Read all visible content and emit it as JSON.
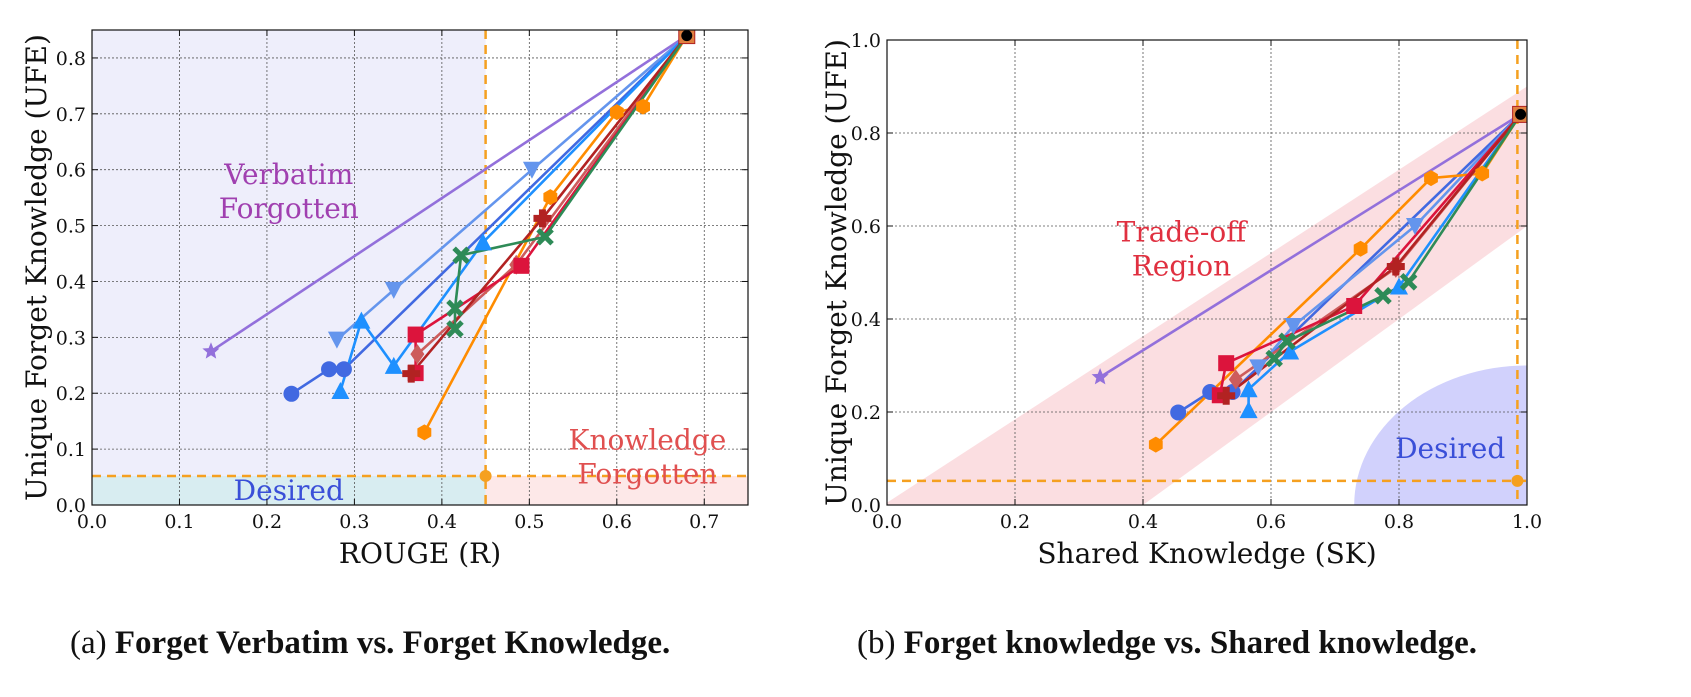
{
  "charts": [
    {
      "id": "a",
      "caption_prefix": "(a)",
      "caption_bold": "Forget Verbatim vs. Forget Knowledge.",
      "xlabel": "ROUGE (R)",
      "ylabel": "Unique Forget Knowledge (UFE)",
      "xlim": [
        0,
        0.75
      ],
      "ylim": [
        0,
        0.85
      ],
      "xticks": [
        "0.0",
        "0.1",
        "0.2",
        "0.3",
        "0.4",
        "0.5",
        "0.6",
        "0.7"
      ],
      "yticks": [
        "0.0",
        "0.1",
        "0.2",
        "0.3",
        "0.4",
        "0.5",
        "0.6",
        "0.7",
        "0.8"
      ],
      "annotations": [
        {
          "lines": [
            "Verbatim",
            "Forgotten"
          ],
          "x": 0.225,
          "y": 0.56,
          "color": "#a040b0"
        },
        {
          "lines": [
            "Knowledge",
            "Forgotten"
          ],
          "x": 0.635,
          "y": 0.085,
          "color": "#e05050"
        },
        {
          "lines": [
            "Desired"
          ],
          "x": 0.225,
          "y": 0.025,
          "color": "#3a4fd8"
        }
      ]
    },
    {
      "id": "b",
      "caption_prefix": "(b)",
      "caption_bold": "Forget knowledge vs. Shared knowledge.",
      "xlabel": "Shared Knowledge (SK)",
      "ylabel": "Unique Forget Knowledge (UFE)",
      "xlim": [
        0,
        1.0
      ],
      "ylim": [
        0,
        1.0
      ],
      "xticks": [
        "0.0",
        "0.2",
        "0.4",
        "0.6",
        "0.8",
        "1.0"
      ],
      "yticks": [
        "0.0",
        "0.2",
        "0.4",
        "0.6",
        "0.8",
        "1.0"
      ],
      "annotations": [
        {
          "lines": [
            "Trade-off",
            "Region"
          ],
          "x": 0.46,
          "y": 0.55,
          "color": "#e03040"
        },
        {
          "lines": [
            "Desired"
          ],
          "x": 0.88,
          "y": 0.12,
          "color": "#3a4fd8"
        }
      ]
    }
  ],
  "chart_data": [
    {
      "type": "line",
      "title": "",
      "xlabel": "ROUGE (R)",
      "ylabel": "Unique Forget Knowledge (UFE)",
      "xlim": [
        0,
        0.75
      ],
      "ylim": [
        0,
        0.85
      ],
      "grid": true,
      "thresholds": {
        "x": 0.45,
        "y": 0.052
      },
      "origin_point": [
        0.68,
        0.84
      ],
      "series": [
        {
          "color": "#9370db",
          "marker": "star",
          "points": [
            [
              0.68,
              0.84
            ],
            [
              0.136,
              0.275
            ]
          ]
        },
        {
          "color": "#4169e1",
          "marker": "circle",
          "points": [
            [
              0.68,
              0.84
            ],
            [
              0.288,
              0.243
            ],
            [
              0.271,
              0.243
            ],
            [
              0.228,
              0.199
            ]
          ]
        },
        {
          "color": "#6495ed",
          "marker": "triangle-down",
          "points": [
            [
              0.68,
              0.84
            ],
            [
              0.503,
              0.6
            ],
            [
              0.345,
              0.385
            ],
            [
              0.28,
              0.296
            ]
          ]
        },
        {
          "color": "#1e90ff",
          "marker": "triangle-up",
          "points": [
            [
              0.68,
              0.84
            ],
            [
              0.447,
              0.47
            ],
            [
              0.345,
              0.249
            ],
            [
              0.308,
              0.33
            ],
            [
              0.284,
              0.204
            ]
          ]
        },
        {
          "color": "#ff8c00",
          "marker": "hexagon",
          "points": [
            [
              0.68,
              0.84
            ],
            [
              0.63,
              0.713
            ],
            [
              0.6,
              0.703
            ],
            [
              0.524,
              0.551
            ],
            [
              0.38,
              0.13
            ]
          ]
        },
        {
          "color": "#cd5c5c",
          "marker": "diamond",
          "points": [
            [
              0.68,
              0.84
            ],
            [
              0.485,
              0.43
            ],
            [
              0.372,
              0.27
            ]
          ]
        },
        {
          "color": "#dc143c",
          "marker": "square",
          "points": [
            [
              0.68,
              0.84
            ],
            [
              0.491,
              0.428
            ],
            [
              0.37,
              0.305
            ],
            [
              0.37,
              0.236
            ]
          ]
        },
        {
          "color": "#b22222",
          "marker": "plus",
          "points": [
            [
              0.68,
              0.84
            ],
            [
              0.515,
              0.513
            ],
            [
              0.365,
              0.235
            ]
          ]
        },
        {
          "color": "#2e8b57",
          "marker": "x",
          "points": [
            [
              0.68,
              0.84
            ],
            [
              0.518,
              0.48
            ],
            [
              0.422,
              0.447
            ],
            [
              0.415,
              0.352
            ],
            [
              0.415,
              0.315
            ]
          ]
        }
      ]
    },
    {
      "type": "line",
      "title": "",
      "xlabel": "Shared Knowledge (SK)",
      "ylabel": "Unique Forget Knowledge (UFE)",
      "xlim": [
        0,
        1.0
      ],
      "ylim": [
        0,
        1.0
      ],
      "grid": true,
      "thresholds": {
        "x": 0.985,
        "y": 0.052
      },
      "origin_point": [
        0.99,
        0.84
      ],
      "series": [
        {
          "color": "#9370db",
          "marker": "star",
          "points": [
            [
              0.99,
              0.84
            ],
            [
              0.333,
              0.275
            ]
          ]
        },
        {
          "color": "#4169e1",
          "marker": "circle",
          "points": [
            [
              0.99,
              0.84
            ],
            [
              0.54,
              0.243
            ],
            [
              0.505,
              0.243
            ],
            [
              0.455,
              0.199
            ]
          ]
        },
        {
          "color": "#6495ed",
          "marker": "triangle-down",
          "points": [
            [
              0.99,
              0.84
            ],
            [
              0.825,
              0.6
            ],
            [
              0.635,
              0.385
            ],
            [
              0.58,
              0.296
            ]
          ]
        },
        {
          "color": "#1e90ff",
          "marker": "triangle-up",
          "points": [
            [
              0.99,
              0.84
            ],
            [
              0.8,
              0.47
            ],
            [
              0.63,
              0.33
            ],
            [
              0.565,
              0.249
            ],
            [
              0.565,
              0.204
            ]
          ]
        },
        {
          "color": "#ff8c00",
          "marker": "hexagon",
          "points": [
            [
              0.99,
              0.84
            ],
            [
              0.93,
              0.713
            ],
            [
              0.85,
              0.703
            ],
            [
              0.74,
              0.551
            ],
            [
              0.42,
              0.13
            ]
          ]
        },
        {
          "color": "#cd5c5c",
          "marker": "diamond",
          "points": [
            [
              0.99,
              0.84
            ],
            [
              0.795,
              0.51
            ],
            [
              0.545,
              0.27
            ]
          ]
        },
        {
          "color": "#dc143c",
          "marker": "square",
          "points": [
            [
              0.99,
              0.84
            ],
            [
              0.73,
              0.428
            ],
            [
              0.53,
              0.305
            ],
            [
              0.52,
              0.236
            ]
          ]
        },
        {
          "color": "#b22222",
          "marker": "plus",
          "points": [
            [
              0.99,
              0.84
            ],
            [
              0.795,
              0.513
            ],
            [
              0.53,
              0.235
            ]
          ]
        },
        {
          "color": "#2e8b57",
          "marker": "x",
          "points": [
            [
              0.99,
              0.84
            ],
            [
              0.815,
              0.48
            ],
            [
              0.775,
              0.45
            ],
            [
              0.625,
              0.352
            ],
            [
              0.605,
              0.315
            ]
          ]
        }
      ]
    }
  ]
}
